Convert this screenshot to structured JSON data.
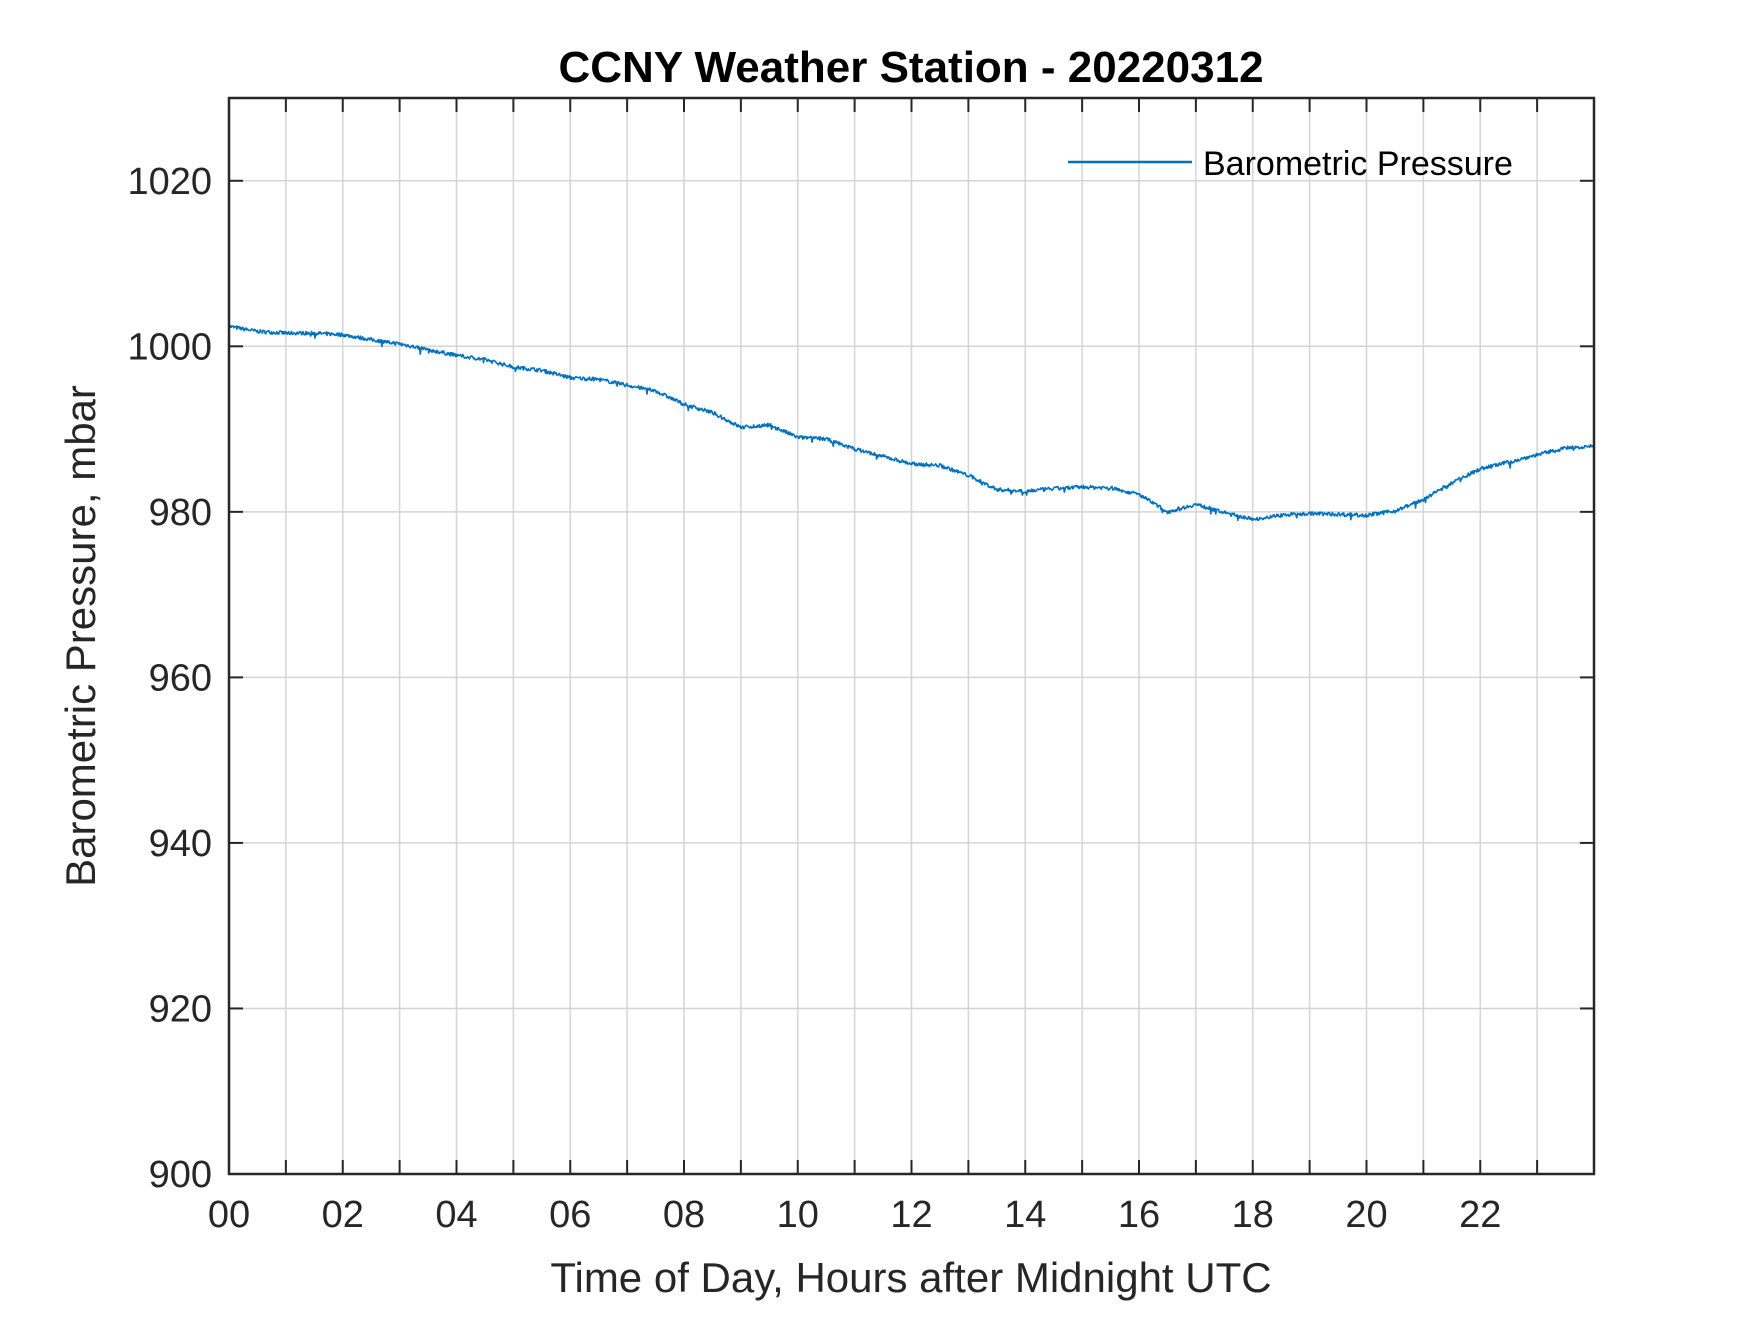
{
  "chart_data": {
    "type": "line",
    "title": "CCNY Weather Station - 20220312",
    "xlabel": "Time of Day, Hours after Midnight UTC",
    "ylabel": "Barometric Pressure, mbar",
    "xlim": [
      0,
      24
    ],
    "ylim": [
      900,
      1030
    ],
    "xticks": [
      0,
      2,
      4,
      6,
      8,
      10,
      12,
      14,
      16,
      18,
      20,
      22
    ],
    "xtick_labels": [
      "00",
      "02",
      "04",
      "06",
      "08",
      "10",
      "12",
      "14",
      "16",
      "18",
      "20",
      "22"
    ],
    "yticks": [
      900,
      920,
      940,
      960,
      980,
      1000,
      1020
    ],
    "ytick_labels": [
      "900",
      "920",
      "940",
      "960",
      "980",
      "1000",
      "1020"
    ],
    "minor_x_grid_step": 1,
    "grid": true,
    "legend": {
      "position": "top-right",
      "entries": [
        "Barometric Pressure"
      ]
    },
    "colors": {
      "series": "#0072BD",
      "grid": "#d4d4d4",
      "axis": "#262626"
    },
    "series": [
      {
        "name": "Barometric Pressure",
        "x": [
          0,
          0.5,
          1,
          1.5,
          2,
          2.5,
          3,
          3.5,
          4,
          4.5,
          5,
          5.5,
          6,
          6.5,
          7,
          7.5,
          8,
          8.5,
          9,
          9.5,
          10,
          10.5,
          11,
          11.5,
          12,
          12.5,
          13,
          13.5,
          14,
          14.5,
          15,
          15.5,
          16,
          16.5,
          17,
          17.5,
          18,
          18.5,
          19,
          19.5,
          20,
          20.5,
          21,
          21.5,
          22,
          22.5,
          23,
          23.5,
          24
        ],
        "values": [
          1002.4,
          1001.8,
          1001.6,
          1001.6,
          1001.4,
          1000.8,
          1000.3,
          999.6,
          998.9,
          998.4,
          997.5,
          997.1,
          996.2,
          996.0,
          995.3,
          994.6,
          993.0,
          992.0,
          990.2,
          990.5,
          989.0,
          988.8,
          987.6,
          986.7,
          985.8,
          985.6,
          984.4,
          982.7,
          982.5,
          982.8,
          983.0,
          982.9,
          982.1,
          980.0,
          980.9,
          979.9,
          979.1,
          979.6,
          979.8,
          979.7,
          979.6,
          980.1,
          981.5,
          983.5,
          985.2,
          986.0,
          986.9,
          987.7,
          988.0
        ]
      }
    ]
  }
}
